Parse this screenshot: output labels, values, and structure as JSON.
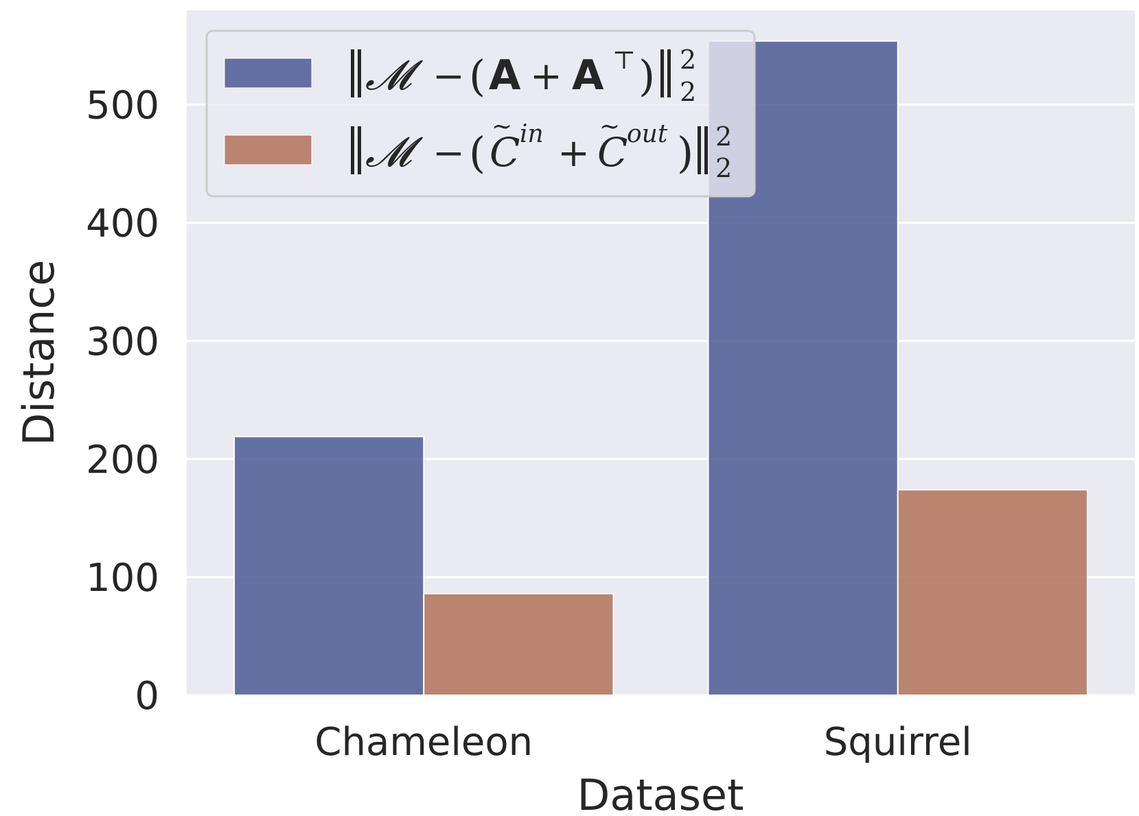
{
  "chart_data": {
    "type": "bar",
    "title": "",
    "xlabel": "Dataset",
    "ylabel": "Distance",
    "categories": [
      "Chameleon",
      "Squirrel"
    ],
    "series": [
      {
        "name": "‖𝓜 − (A + A⊤)‖²₂",
        "values": [
          219,
          554
        ],
        "color": "#4c5a94"
      },
      {
        "name": "‖𝓜 − (C̃ⁱⁿ + C̃ᵒᵘᵗ)‖²₂",
        "values": [
          86,
          174
        ],
        "color": "#b27258"
      }
    ],
    "ylim": [
      0,
      580
    ],
    "yticks": [
      0,
      100,
      200,
      300,
      400,
      500
    ],
    "grid": true,
    "legend_position": "top-left",
    "colors": {
      "background": "#eaeaf2",
      "grid": "#ffffff",
      "text": "#262626"
    }
  }
}
